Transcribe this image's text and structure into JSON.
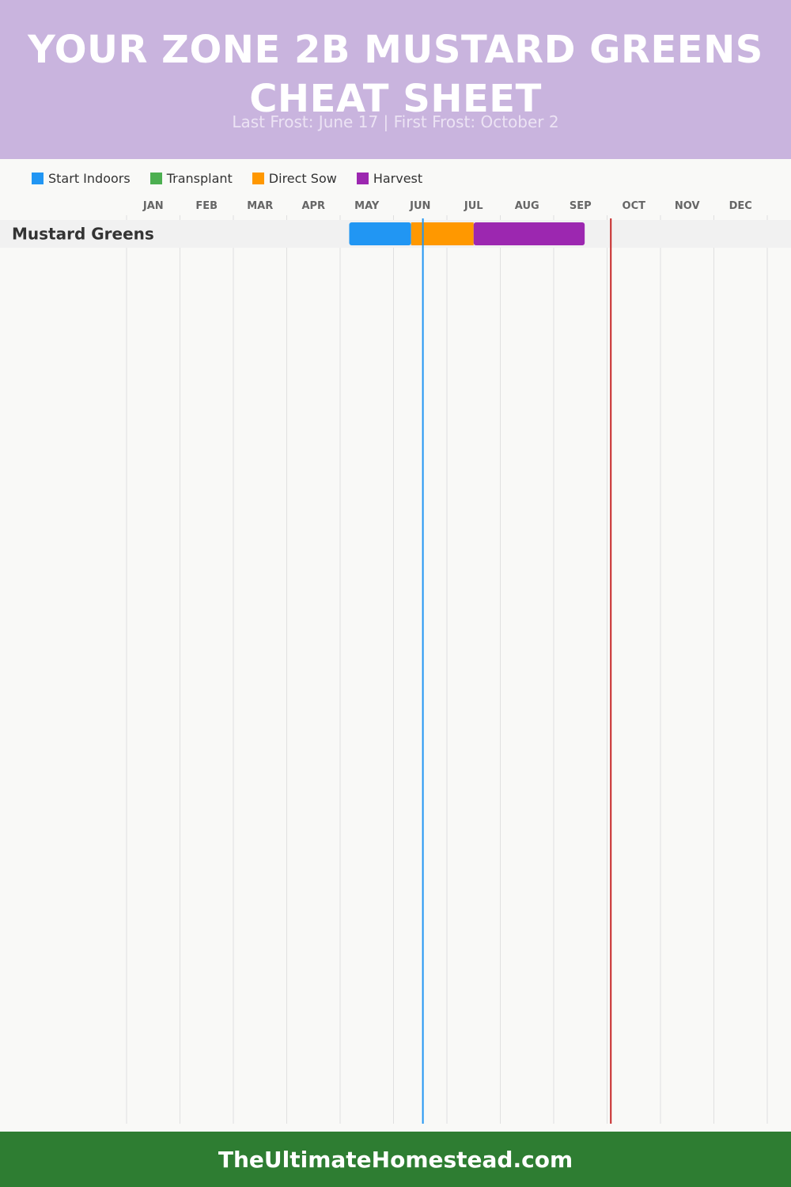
{
  "header": {
    "title": "YOUR ZONE 2B MUSTARD GREENS CHEAT SHEET",
    "subtitle": "Last Frost: June 17 | First Frost: October 2"
  },
  "legend": [
    {
      "label": "Start Indoors",
      "color": "#2196f3"
    },
    {
      "label": "Transplant",
      "color": "#4caf50"
    },
    {
      "label": "Direct Sow",
      "color": "#ff9800"
    },
    {
      "label": "Harvest",
      "color": "#9c27b0"
    }
  ],
  "chart_data": {
    "type": "gantt",
    "months": [
      "JAN",
      "FEB",
      "MAR",
      "APR",
      "MAY",
      "JUN",
      "JUL",
      "AUG",
      "SEP",
      "OCT",
      "NOV",
      "DEC"
    ],
    "rows": [
      {
        "label": "Mustard Greens",
        "segments": [
          {
            "phase": "Start Indoors",
            "start": 5.17,
            "end": 6.33,
            "color": "#2196f3"
          },
          {
            "phase": "Direct Sow",
            "start": 6.33,
            "end": 7.5,
            "color": "#ff9800"
          },
          {
            "phase": "Harvest",
            "start": 7.5,
            "end": 9.58,
            "color": "#9c27b0"
          }
        ]
      }
    ],
    "markers": [
      {
        "name": "last-frost",
        "date": "June 17",
        "month_pos": 6.55,
        "color": "#2196f3"
      },
      {
        "name": "first-frost",
        "date": "October 2",
        "month_pos": 10.07,
        "color": "#c62828"
      }
    ],
    "grid": true
  },
  "footer": {
    "text": "TheUltimateHomestead.com"
  }
}
